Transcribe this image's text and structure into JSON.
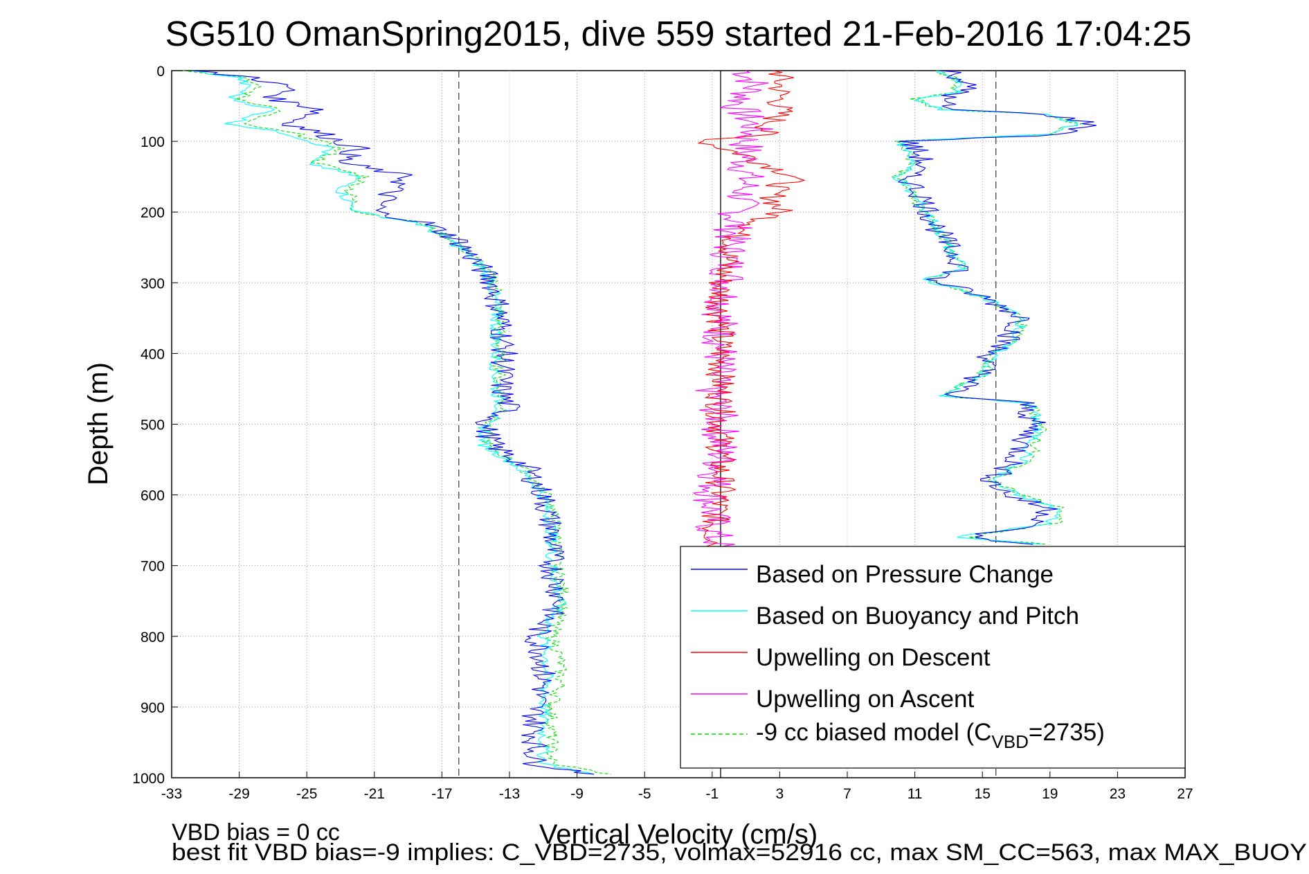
{
  "chart_data": {
    "type": "line",
    "title": "SG510 OmanSpring2015, dive 559 started 21-Feb-2016 17:04:25",
    "xlabel": "Vertical Velocity (cm/s)",
    "ylabel": "Depth (m)",
    "xlim": [
      -33,
      27
    ],
    "ylim": [
      0,
      1000
    ],
    "y_reversed": true,
    "x_ticks": [
      -33,
      -29,
      -25,
      -21,
      -17,
      -13,
      -9,
      -5,
      -1,
      3,
      7,
      11,
      15,
      19,
      23,
      27
    ],
    "y_ticks": [
      0,
      100,
      200,
      300,
      400,
      500,
      600,
      700,
      800,
      900,
      1000
    ],
    "grid": true,
    "legend_position": "bottom-right",
    "reference_lines": [
      {
        "type": "dashed",
        "x": -16
      },
      {
        "type": "solid",
        "x": -0.5
      },
      {
        "type": "dashed",
        "x": 15.8
      }
    ],
    "descent_profile": {
      "depth": [
        0,
        10,
        25,
        40,
        55,
        75,
        90,
        110,
        130,
        150,
        170,
        200,
        215,
        240,
        270,
        300,
        350,
        400,
        450,
        480,
        500,
        530,
        560,
        600,
        650,
        700,
        750,
        800,
        830,
        870,
        900,
        950,
        980,
        995
      ],
      "pressure_change": [
        -32,
        -28,
        -26,
        -27,
        -24,
        -26,
        -24,
        -22,
        -23,
        -19,
        -20,
        -21,
        -18,
        -16,
        -15,
        -14,
        -13.5,
        -13.3,
        -13.5,
        -13,
        -14.5,
        -14,
        -12,
        -11,
        -10.5,
        -10.5,
        -10,
        -11.5,
        -11,
        -11,
        -11.5,
        -11.5,
        -11.5,
        -8
      ],
      "buoyancy_pitch": [
        -32,
        -29,
        -28.5,
        -29.5,
        -27,
        -29.5,
        -26,
        -23.5,
        -25,
        -22,
        -23,
        -22,
        -18.5,
        -16.5,
        -15,
        -14,
        -13.8,
        -13.8,
        -13.8,
        -13.5,
        -14.5,
        -14.5,
        -12.5,
        -11,
        -10.5,
        -10.5,
        -10,
        -11,
        -10.8,
        -10.8,
        -11,
        -11,
        -11,
        -8
      ],
      "biased_model": [
        -32,
        -28.5,
        -28,
        -29,
        -26.5,
        -29,
        -25.5,
        -23,
        -24.5,
        -21.5,
        -22.5,
        -22,
        -18.3,
        -16.3,
        -14.8,
        -13.8,
        -13.6,
        -13.6,
        -13.6,
        -13.3,
        -14.3,
        -14.3,
        -12.3,
        -10.7,
        -10.2,
        -10.2,
        -9.7,
        -10.5,
        -10,
        -10,
        -10.5,
        -10.5,
        -10.5,
        -7
      ]
    },
    "ascent_profile": {
      "depth": [
        0,
        15,
        30,
        40,
        55,
        62,
        75,
        90,
        100,
        110,
        130,
        150,
        180,
        210,
        250,
        280,
        295,
        320,
        350,
        380,
        400,
        430,
        460,
        470,
        500,
        520,
        550,
        580,
        600,
        620,
        640,
        660,
        670
      ],
      "pressure_change": [
        13,
        14,
        14,
        12.5,
        13,
        19,
        21.5,
        20,
        10.5,
        11,
        11.5,
        10.5,
        11.5,
        12,
        13,
        14,
        12,
        15,
        17.5,
        16.5,
        15.5,
        15,
        13,
        17.5,
        18,
        17.5,
        17,
        15.5,
        16.5,
        19,
        18.5,
        14,
        18
      ],
      "buoyancy_pitch": [
        12.5,
        13.5,
        13.5,
        11,
        12.5,
        19,
        20.5,
        19,
        10,
        10.5,
        11,
        10,
        11,
        12,
        13,
        13.8,
        11.5,
        15,
        17.5,
        16.8,
        15.8,
        15,
        12.5,
        17.8,
        18.3,
        18,
        17.5,
        15.5,
        17,
        19.5,
        19,
        13.5,
        18.5
      ],
      "biased_model": [
        12.5,
        13.5,
        13.5,
        11,
        12.5,
        19,
        20.5,
        19,
        10,
        10.5,
        11,
        10,
        11,
        12,
        13,
        13.8,
        11.5,
        15,
        17.5,
        16.8,
        15.8,
        15,
        12.5,
        17.8,
        18.5,
        18.3,
        17.8,
        15.7,
        17.3,
        19.8,
        19.3,
        14,
        18.8
      ]
    },
    "upwelling_descent": {
      "depth": [
        0,
        10,
        30,
        60,
        90,
        100,
        120,
        150,
        170,
        200,
        230,
        260,
        300,
        350,
        400,
        450,
        500,
        560,
        600,
        650,
        680
      ],
      "values": [
        3,
        3,
        3,
        3,
        2,
        -1.5,
        1,
        4,
        2.5,
        3,
        0.5,
        0,
        -0.5,
        -0.5,
        -0.5,
        -0.5,
        -0.5,
        -0.5,
        -0.5,
        -1,
        -0.5
      ]
    },
    "upwelling_ascent": {
      "depth": [
        0,
        20,
        50,
        80,
        100,
        130,
        160,
        200,
        250,
        300,
        350,
        400,
        450,
        500,
        550,
        600,
        650,
        680
      ],
      "values": [
        1,
        1.5,
        0.5,
        1.5,
        1,
        1,
        1,
        0.5,
        0,
        0,
        -0.5,
        -0.5,
        -1,
        -0.5,
        -0.5,
        -1,
        -1,
        -0.5
      ]
    },
    "legend": [
      {
        "label": "Based on Pressure Change",
        "color": "#0000ff",
        "style": "solid"
      },
      {
        "label": "Based on Buoyancy and Pitch",
        "color": "#00ffff",
        "style": "solid"
      },
      {
        "label": "Upwelling on Descent",
        "color": "#ff0000",
        "style": "solid"
      },
      {
        "label": "Upwelling on Ascent",
        "color": "#ff00ff",
        "style": "solid"
      },
      {
        "label": "-9 cc biased model (C",
        "sub": "VBD",
        "suffix": "=2735)",
        "color": "#00dd00",
        "style": "dashed"
      }
    ],
    "footnotes": [
      "VBD bias = 0 cc",
      "best fit VBD bias=-9 implies: C_VBD=2735, volmax=52916 cc, max SM_CC=563, max MAX_BUOY"
    ]
  }
}
